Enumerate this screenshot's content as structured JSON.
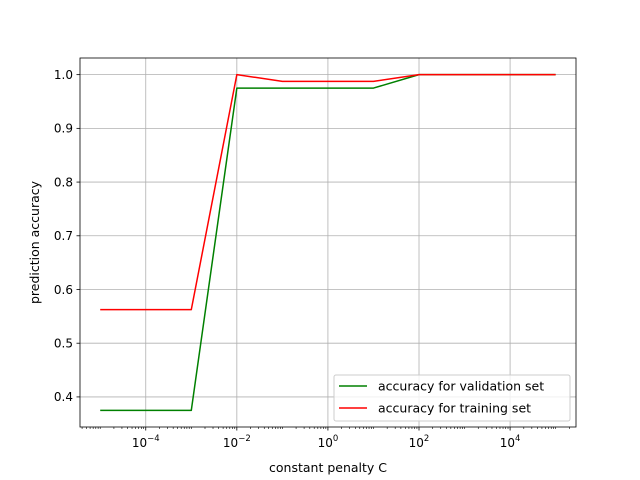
{
  "chart_data": {
    "type": "line",
    "title": "",
    "xlabel": "constant penalty C",
    "ylabel": "prediction accuracy",
    "x_scale": "log",
    "x": [
      1e-05,
      0.0001,
      0.001,
      0.01,
      0.1,
      1,
      10,
      100,
      1000,
      10000,
      100000
    ],
    "xlim": [
      3.6e-06,
      280000
    ],
    "ylim": [
      0.344,
      1.031
    ],
    "x_ticks": [
      {
        "value": 0.0001,
        "base": "10",
        "exp": "−4"
      },
      {
        "value": 0.01,
        "base": "10",
        "exp": "−2"
      },
      {
        "value": 1,
        "base": "10",
        "exp": "0"
      },
      {
        "value": 100,
        "base": "10",
        "exp": "2"
      },
      {
        "value": 10000,
        "base": "10",
        "exp": "4"
      }
    ],
    "y_ticks": [
      "0.4",
      "0.5",
      "0.6",
      "0.7",
      "0.8",
      "0.9",
      "1.0"
    ],
    "grid": true,
    "legend_position": "lower-right",
    "series": [
      {
        "name": "accuracy for validation set",
        "color": "#008000",
        "values": [
          0.375,
          0.375,
          0.375,
          0.975,
          0.975,
          0.975,
          0.975,
          1.0,
          1.0,
          1.0,
          1.0
        ]
      },
      {
        "name": "accuracy for training set",
        "color": "#ff0000",
        "values": [
          0.5625,
          0.5625,
          0.5625,
          1.0,
          0.9875,
          0.9875,
          0.9875,
          1.0,
          1.0,
          1.0,
          1.0
        ]
      }
    ]
  }
}
